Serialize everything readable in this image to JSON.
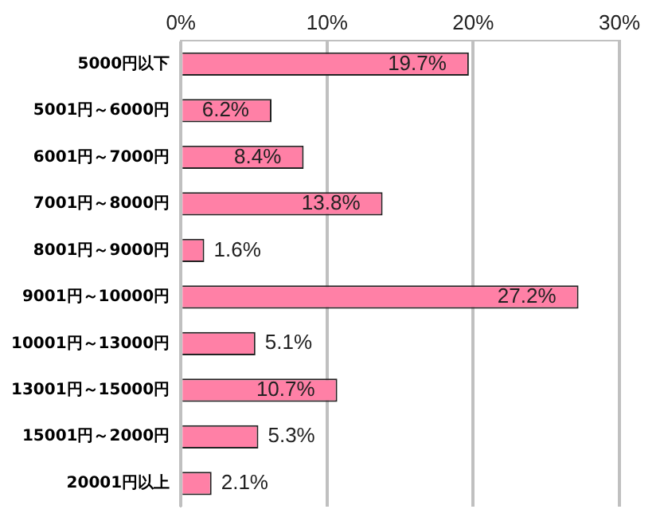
{
  "chart_data": {
    "type": "bar",
    "orientation": "horizontal",
    "categories": [
      "5000円以下",
      "5001円～6000円",
      "6001円～7000円",
      "7001円～8000円",
      "8001円～9000円",
      "9001円～10000円",
      "10001円～13000円",
      "13001円～15000円",
      "15001円～2000円",
      "20001円以上"
    ],
    "values": [
      19.7,
      6.2,
      8.4,
      13.8,
      1.6,
      27.2,
      5.1,
      10.7,
      5.3,
      2.1
    ],
    "value_labels": [
      "19.7%",
      "6.2%",
      "8.4%",
      "13.8%",
      "1.6%",
      "27.2%",
      "5.1%",
      "10.7%",
      "5.3%",
      "2.1%"
    ],
    "color": "#ff80a6",
    "xlim": [
      0,
      30
    ],
    "xticks": [
      {
        "value": 0,
        "label": "0%"
      },
      {
        "value": 10,
        "label": "10%"
      },
      {
        "value": 20,
        "label": "20%"
      },
      {
        "value": 30,
        "label": "30%"
      }
    ],
    "grid": "x",
    "legend": false
  }
}
